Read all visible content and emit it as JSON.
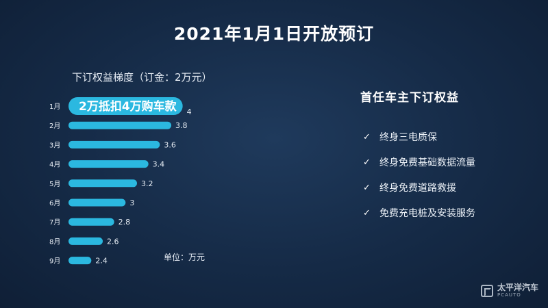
{
  "page": {
    "title": "2021年1月1日开放预订",
    "panel_title": "首任车主下订权益",
    "benefits": [
      "终身三电质保",
      "终身免费基础数据流量",
      "终身免费道路救援",
      "免费充电桩及安装服务"
    ],
    "logo_cn": "太平洋汽车",
    "logo_en": "PCAUTO"
  },
  "chart_data": {
    "type": "bar",
    "orientation": "horizontal",
    "title": "下订权益梯度（订金：2万元）",
    "unit_label": "单位：万元",
    "categories": [
      "1月",
      "2月",
      "3月",
      "4月",
      "5月",
      "6月",
      "7月",
      "8月",
      "9月"
    ],
    "values": [
      4,
      3.8,
      3.6,
      3.4,
      3.2,
      3,
      2.8,
      2.6,
      2.4
    ],
    "value_labels": [
      "4",
      "3.8",
      "3.6",
      "3.4",
      "3.2",
      "3",
      "2.8",
      "2.6",
      "2.4"
    ],
    "highlight": {
      "index": 0,
      "label": "2万抵扣4万购车款"
    },
    "colors": {
      "bar": "#2bb8e0",
      "background": "#152a46"
    },
    "grid": false,
    "legend": "none"
  }
}
